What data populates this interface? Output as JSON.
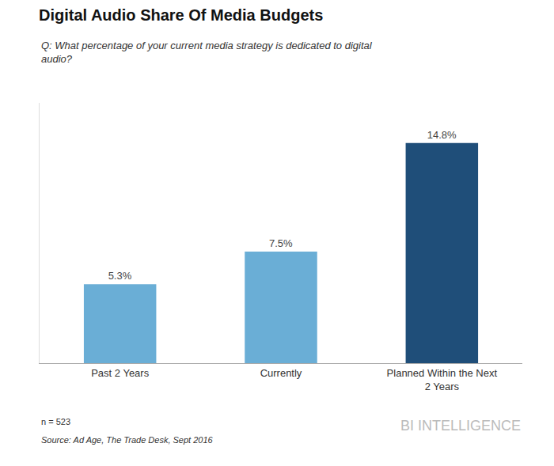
{
  "chart_data": {
    "type": "bar",
    "title": "Digital Audio Share Of Media Budgets",
    "subtitle": "Q: What percentage of your current media strategy is dedicated to digital\naudio?",
    "categories": [
      "Past 2 Years",
      "Currently",
      "Planned Within the Next\n2 Years"
    ],
    "values": [
      5.3,
      7.5,
      14.8
    ],
    "value_labels": [
      "5.3%",
      "7.5%",
      "14.8%"
    ],
    "colors": [
      "#6aaed6",
      "#6aaed6",
      "#1f4e79"
    ],
    "data_labels": true,
    "ylim": [
      0,
      17.5
    ],
    "tick_labels": "x",
    "grid": false,
    "annotations": [
      "n = 523",
      "Source: Ad Age, The Trade Desk, Sept 2016",
      "BI INTELLIGENCE"
    ]
  }
}
